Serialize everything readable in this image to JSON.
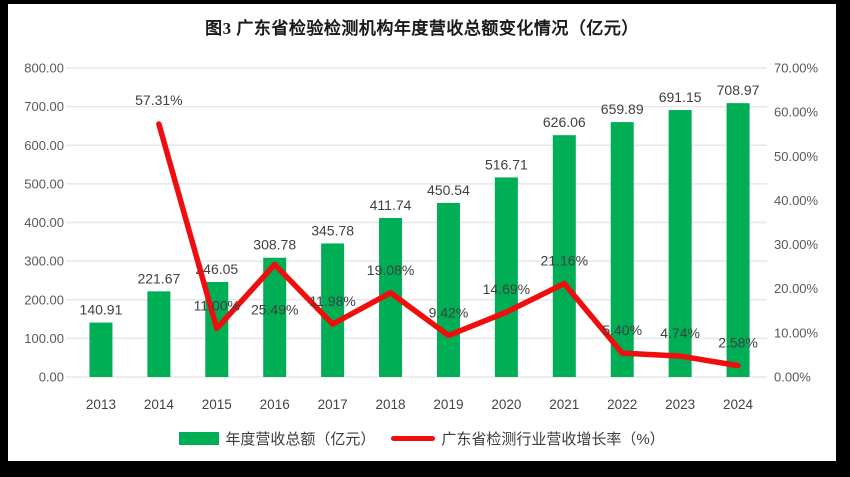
{
  "title": "图3 广东省检验检测机构年度营收总额变化情况（亿元）",
  "chart_data": {
    "type": "combo-bar-line",
    "categories": [
      "2013",
      "2014",
      "2015",
      "2016",
      "2017",
      "2018",
      "2019",
      "2020",
      "2021",
      "2022",
      "2023",
      "2024"
    ],
    "series": [
      {
        "name": "年度营收总额（亿元）",
        "type": "bar",
        "axis": "left",
        "color": "#00AE55",
        "values": [
          140.91,
          221.67,
          246.05,
          308.78,
          345.78,
          411.74,
          450.54,
          516.71,
          626.06,
          659.89,
          691.15,
          708.97
        ],
        "labels": [
          "140.91",
          "221.67",
          "246.05",
          "308.78",
          "345.78",
          "411.74",
          "450.54",
          "516.71",
          "626.06",
          "659.89",
          "691.15",
          "708.97"
        ]
      },
      {
        "name": "广东省检测行业营收增长率（%）",
        "type": "line",
        "axis": "right",
        "color": "#F00D0D",
        "values": [
          null,
          57.31,
          11.0,
          25.49,
          11.98,
          19.08,
          9.42,
          14.69,
          21.16,
          5.4,
          4.74,
          2.58
        ],
        "labels": [
          null,
          "57.31%",
          "11.00%",
          "25.49%",
          "11.98%",
          "19.08%",
          "9.42%",
          "14.69%",
          "21.16%",
          "5.40%",
          "4.74%",
          "2.58%"
        ],
        "label_baseline_dy": [
          0,
          -19,
          -18,
          50,
          -18,
          -18,
          -18,
          -18,
          -18,
          -18,
          -18,
          -18
        ]
      }
    ],
    "left_axis": {
      "min": 0,
      "max": 800,
      "step": 100,
      "tick_labels": [
        "0.00",
        "100.00",
        "200.00",
        "300.00",
        "400.00",
        "500.00",
        "600.00",
        "700.00",
        "800.00"
      ]
    },
    "right_axis": {
      "min": 0,
      "max": 70,
      "step": 10,
      "tick_labels": [
        "0.00%",
        "10.00%",
        "20.00%",
        "30.00%",
        "40.00%",
        "50.00%",
        "60.00%",
        "70.00%"
      ]
    },
    "grid": true,
    "legend_position": "bottom"
  },
  "legend": {
    "items": [
      {
        "label": "年度营收总额（亿元）",
        "marker": "bar",
        "color": "#00AE55"
      },
      {
        "label": "广东省检测行业营收增长率（%）",
        "marker": "line",
        "color": "#F00D0D"
      }
    ]
  },
  "colors": {
    "bar": "#00AE55",
    "line": "#F00D0D",
    "grid": "#E7E7E8",
    "axis_text": "#595959",
    "label_text": "#404040",
    "year_text": "#444444",
    "background": "#FFFFFF",
    "frame": "#000000"
  }
}
